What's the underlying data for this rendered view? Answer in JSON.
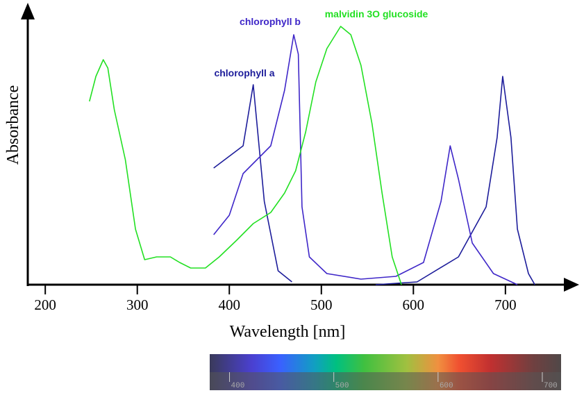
{
  "chart_data": [
    {
      "type": "line",
      "xlabel": "Wavelength [nm]",
      "ylabel": "Absorbance",
      "xlim": [
        181,
        762
      ],
      "ylim": [
        0,
        1
      ],
      "xticks": [
        200,
        300,
        400,
        500,
        600,
        700
      ],
      "series": [
        {
          "name": "chlorophyll a",
          "color": "#1c1c9a",
          "x": [
            383,
            415,
            426,
            438,
            453,
            468,
            513,
            559,
            604,
            649,
            679,
            691,
            697,
            706,
            713,
            725,
            732
          ],
          "values": [
            0.42,
            0.5,
            0.72,
            0.3,
            0.05,
            0.01,
            null,
            0,
            0.01,
            0.1,
            0.28,
            0.53,
            0.75,
            0.53,
            0.2,
            0.04,
            0
          ]
        },
        {
          "name": "chlorophyll b",
          "color": "#3e26c8",
          "x": [
            383,
            400,
            415,
            430,
            445,
            460,
            470,
            475,
            479,
            487,
            506,
            543,
            581,
            611,
            630,
            640,
            649,
            664,
            687,
            713
          ],
          "values": [
            0.18,
            0.25,
            0.4,
            0.45,
            0.5,
            0.7,
            0.9,
            0.83,
            0.28,
            0.1,
            0.04,
            0.02,
            0.03,
            0.08,
            0.3,
            0.5,
            0.38,
            0.15,
            0.04,
            0
          ]
        },
        {
          "name": "malvidin 3O glucoside",
          "color": "#22e022",
          "x": [
            248,
            255,
            263,
            268,
            275,
            287,
            298,
            308,
            321,
            336,
            346,
            358,
            374,
            389,
            408,
            426,
            445,
            460,
            472,
            483,
            494,
            506,
            521,
            532,
            543,
            555,
            566,
            577,
            587
          ],
          "values": [
            0.66,
            0.75,
            0.81,
            0.78,
            0.63,
            0.45,
            0.2,
            0.09,
            0.1,
            0.1,
            0.08,
            0.06,
            0.06,
            0.1,
            0.16,
            0.22,
            0.26,
            0.33,
            0.41,
            0.55,
            0.73,
            0.85,
            0.93,
            0.9,
            0.79,
            0.58,
            0.33,
            0.1,
            0
          ]
        }
      ]
    },
    {
      "type": "spectrum",
      "xlim": [
        381,
        718
      ],
      "xticks": [
        400,
        500,
        600,
        700
      ]
    }
  ]
}
